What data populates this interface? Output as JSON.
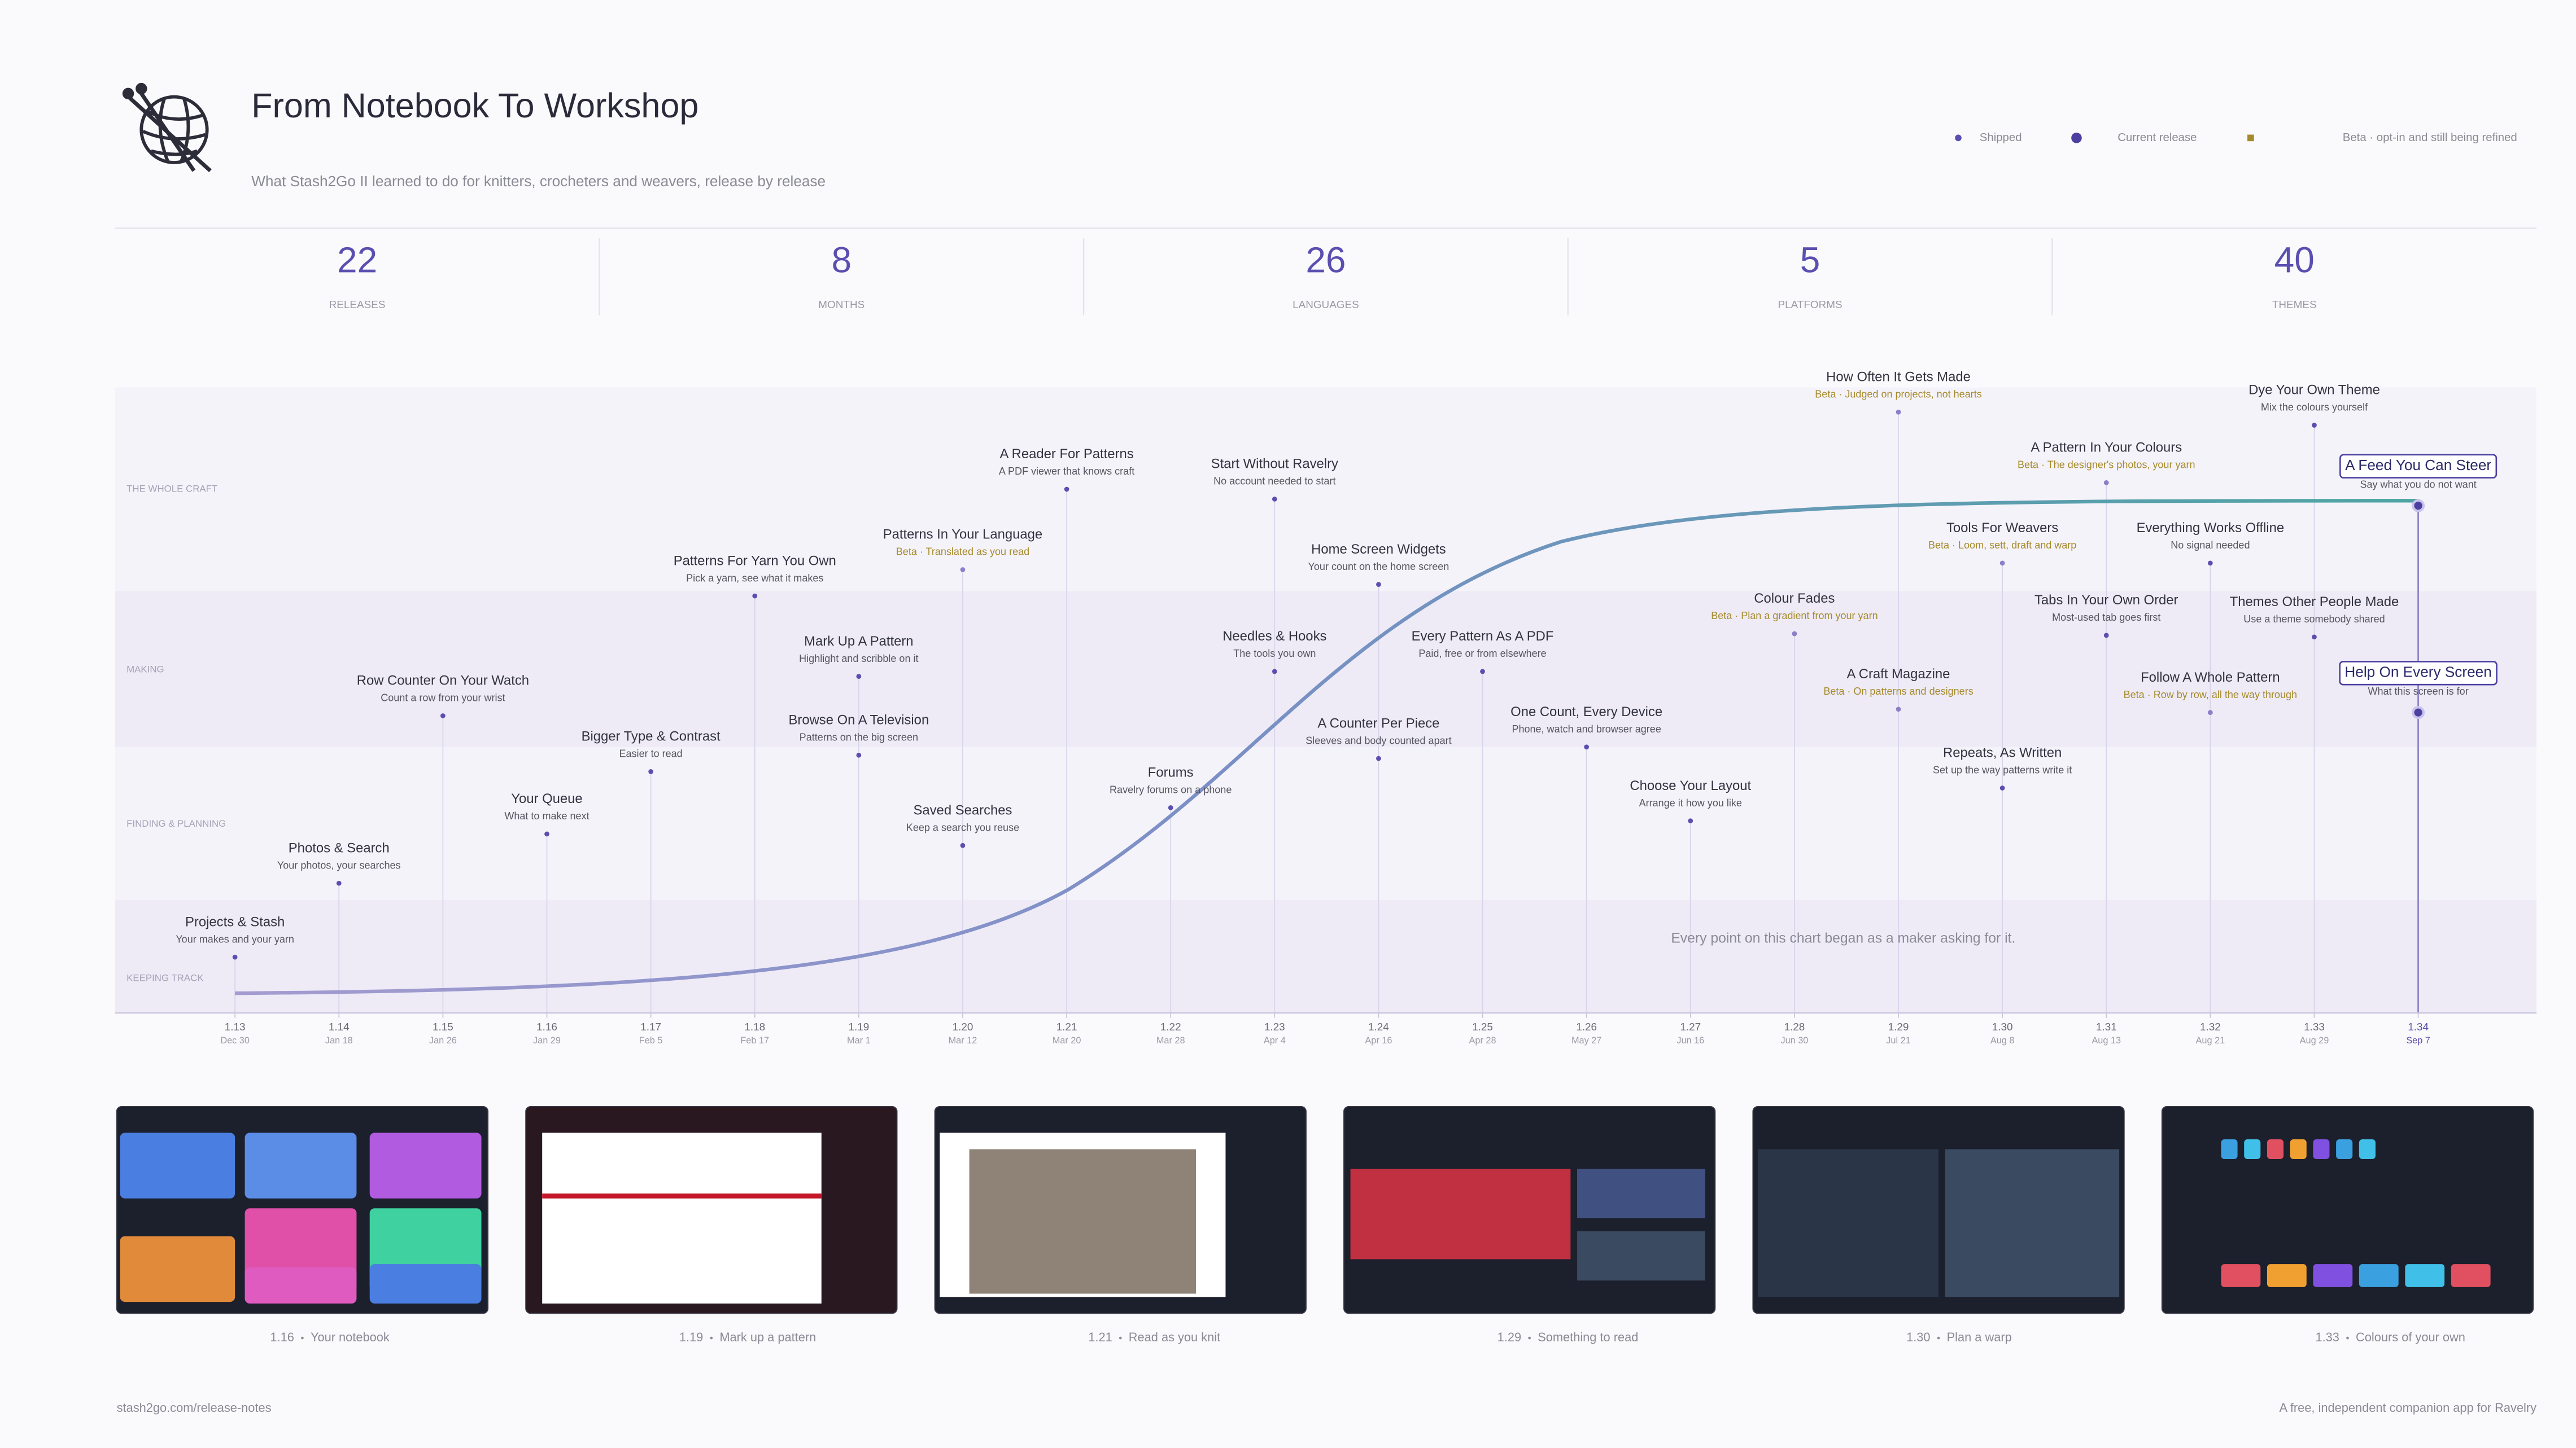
{
  "header": {
    "title": "From Notebook To Workshop",
    "subtitle": "What Stash2Go II learned to do for knitters, crocheters and weavers, release by release"
  },
  "legend": {
    "shipped": "Shipped",
    "current": "Current release",
    "beta": "Beta · opt-in and still being refined"
  },
  "stats": [
    {
      "value": 22,
      "label": "RELEASES"
    },
    {
      "value": 8,
      "label": "MONTHS"
    },
    {
      "value": 26,
      "label": "LANGUAGES"
    },
    {
      "value": 5,
      "label": "PLATFORMS"
    },
    {
      "value": 40,
      "label": "THEMES"
    }
  ],
  "lanes": [
    "THE WHOLE CRAFT",
    "MAKING",
    "FINDING & PLANNING",
    "KEEPING TRACK"
  ],
  "releases": [
    {
      "version": "1.13",
      "date": "Dec 30",
      "milestones": [
        {
          "title": "Projects & Stash",
          "subtitle": "Your makes and your yarn",
          "beta": false
        }
      ]
    },
    {
      "version": "1.14",
      "date": "Jan 18",
      "milestones": [
        {
          "title": "Photos & Search",
          "subtitle": "Your photos, your searches",
          "beta": false
        }
      ]
    },
    {
      "version": "1.15",
      "date": "Jan 26",
      "milestones": [
        {
          "title": "Row Counter On Your Watch",
          "subtitle": "Count a row from your wrist",
          "beta": false
        }
      ]
    },
    {
      "version": "1.16",
      "date": "Jan 29",
      "milestones": [
        {
          "title": "Your Queue",
          "subtitle": "What to make next",
          "beta": false
        }
      ]
    },
    {
      "version": "1.17",
      "date": "Feb 5",
      "milestones": [
        {
          "title": "Bigger Type & Contrast",
          "subtitle": "Easier to read",
          "beta": false
        }
      ]
    },
    {
      "version": "1.18",
      "date": "Feb 17",
      "milestones": [
        {
          "title": "Patterns For Yarn You Own",
          "subtitle": "Pick a yarn, see what it makes",
          "beta": false
        }
      ]
    },
    {
      "version": "1.19",
      "date": "Mar 1",
      "milestones": [
        {
          "title": "Mark Up A Pattern",
          "subtitle": "Highlight and scribble on it",
          "beta": false
        },
        {
          "title": "Browse On A Television",
          "subtitle": "Patterns on the big screen",
          "beta": false
        }
      ]
    },
    {
      "version": "1.20",
      "date": "Mar 12",
      "milestones": [
        {
          "title": "Patterns In Your Language",
          "subtitle": "Beta · Translated as you read",
          "beta": true
        },
        {
          "title": "Saved Searches",
          "subtitle": "Keep a search you reuse",
          "beta": false
        }
      ]
    },
    {
      "version": "1.21",
      "date": "Mar 20",
      "milestones": [
        {
          "title": "A Reader For Patterns",
          "subtitle": "A PDF viewer that knows craft",
          "beta": false
        }
      ]
    },
    {
      "version": "1.22",
      "date": "Mar 28",
      "milestones": [
        {
          "title": "Forums",
          "subtitle": "Ravelry forums on a phone",
          "beta": false
        }
      ]
    },
    {
      "version": "1.23",
      "date": "Apr 4",
      "milestones": [
        {
          "title": "Start Without Ravelry",
          "subtitle": "No account needed to start",
          "beta": false
        },
        {
          "title": "Needles & Hooks",
          "subtitle": "The tools you own",
          "beta": false
        }
      ]
    },
    {
      "version": "1.24",
      "date": "Apr 16",
      "milestones": [
        {
          "title": "Home Screen Widgets",
          "subtitle": "Your count on the home screen",
          "beta": false
        },
        {
          "title": "A Counter Per Piece",
          "subtitle": "Sleeves and body counted apart",
          "beta": false
        }
      ]
    },
    {
      "version": "1.25",
      "date": "Apr 28",
      "milestones": [
        {
          "title": "Every Pattern As A PDF",
          "subtitle": "Paid, free or from elsewhere",
          "beta": false
        }
      ]
    },
    {
      "version": "1.26",
      "date": "May 27",
      "milestones": [
        {
          "title": "One Count, Every Device",
          "subtitle": "Phone, watch and browser agree",
          "beta": false
        }
      ]
    },
    {
      "version": "1.27",
      "date": "Jun 16",
      "milestones": [
        {
          "title": "Choose Your Layout",
          "subtitle": "Arrange it how you like",
          "beta": false
        }
      ]
    },
    {
      "version": "1.28",
      "date": "Jun 30",
      "milestones": [
        {
          "title": "Colour Fades",
          "subtitle": "Beta · Plan a gradient from your yarn",
          "beta": true
        }
      ]
    },
    {
      "version": "1.29",
      "date": "Jul 21",
      "milestones": [
        {
          "title": "How Often It Gets Made",
          "subtitle": "Beta · Judged on projects, not hearts",
          "beta": true
        },
        {
          "title": "A Craft Magazine",
          "subtitle": "Beta · On patterns and designers",
          "beta": true
        }
      ]
    },
    {
      "version": "1.30",
      "date": "Aug 8",
      "milestones": [
        {
          "title": "Tools For Weavers",
          "subtitle": "Beta · Loom, sett, draft and warp",
          "beta": true
        },
        {
          "title": "Repeats, As Written",
          "subtitle": "Set up the way patterns write it",
          "beta": false
        }
      ]
    },
    {
      "version": "1.31",
      "date": "Aug 13",
      "milestones": [
        {
          "title": "A Pattern In Your Colours",
          "subtitle": "Beta · The designer's photos, your yarn",
          "beta": true
        },
        {
          "title": "Tabs In Your Own Order",
          "subtitle": "Most-used tab goes first",
          "beta": false
        }
      ]
    },
    {
      "version": "1.32",
      "date": "Aug 21",
      "milestones": [
        {
          "title": "Everything Works Offline",
          "subtitle": "No signal needed",
          "beta": false
        },
        {
          "title": "Follow A Whole Pattern",
          "subtitle": "Beta · Row by row, all the way through",
          "beta": true
        }
      ]
    },
    {
      "version": "1.33",
      "date": "Aug 29",
      "milestones": [
        {
          "title": "Dye Your Own Theme",
          "subtitle": "Mix the colours yourself",
          "beta": false
        },
        {
          "title": "Themes Other People Made",
          "subtitle": "Use a theme somebody shared",
          "beta": false
        }
      ]
    },
    {
      "version": "1.34",
      "date": "Sep 7",
      "current": true,
      "milestones": [
        {
          "title": "A Feed You Can Steer",
          "subtitle": "Say what you do not want",
          "beta": false
        },
        {
          "title": "Help On Every Screen",
          "subtitle": "What this screen is for",
          "beta": false
        }
      ]
    }
  ],
  "annotation": "Every point on this chart began as a maker asking for it.",
  "screenshots": [
    {
      "version": "1.16",
      "caption": "Your notebook"
    },
    {
      "version": "1.19",
      "caption": "Mark up a pattern"
    },
    {
      "version": "1.21",
      "caption": "Read as you knit"
    },
    {
      "version": "1.29",
      "caption": "Something to read"
    },
    {
      "version": "1.30",
      "caption": "Plan a warp"
    },
    {
      "version": "1.33",
      "caption": "Colours of your own"
    }
  ],
  "footer": {
    "left": "stash2go.com/release-notes",
    "right": "A free, independent companion app for Ravelry"
  }
}
